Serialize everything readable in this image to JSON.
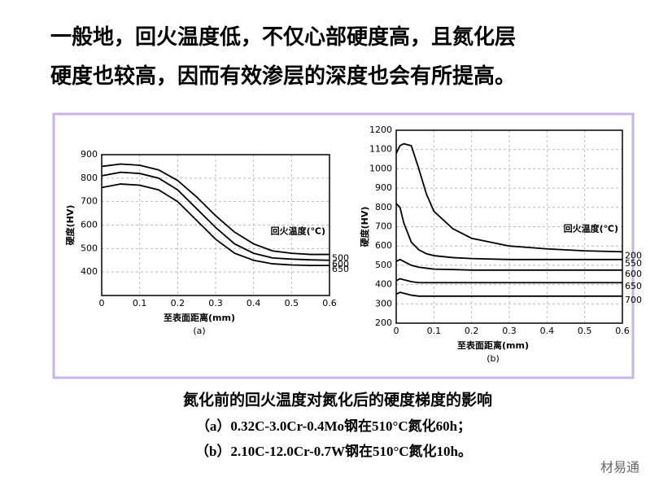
{
  "text": {
    "lines": [
      "一般地，回火温度低，不仅心部硬度高，且氮化层",
      "硬度也较高，因而有效渗层的深度也会有所提高。"
    ]
  },
  "chart_data": [
    {
      "type": "line",
      "label": "(a)",
      "xlabel": "至表面距离(mm)",
      "ylabel": "硬度(HV)",
      "legend_title": "回火温度(℃)",
      "grid": true,
      "x": [
        0,
        0.05,
        0.1,
        0.15,
        0.2,
        0.25,
        0.3,
        0.35,
        0.4,
        0.45,
        0.5,
        0.55,
        0.6
      ],
      "xlim": [
        0,
        0.6
      ],
      "xticks": [
        0,
        0.1,
        0.2,
        0.3,
        0.4,
        0.5,
        0.6
      ],
      "ylim": [
        300,
        900
      ],
      "yticks": [
        400,
        500,
        600,
        700,
        800,
        900
      ],
      "series": [
        {
          "name": "500",
          "color": "#000000",
          "values": [
            850,
            860,
            855,
            835,
            790,
            720,
            640,
            570,
            520,
            490,
            480,
            475,
            475
          ]
        },
        {
          "name": "600",
          "color": "#000000",
          "values": [
            810,
            825,
            820,
            800,
            750,
            670,
            590,
            520,
            480,
            460,
            455,
            452,
            450
          ]
        },
        {
          "name": "650",
          "color": "#000000",
          "values": [
            760,
            775,
            770,
            750,
            700,
            620,
            540,
            480,
            450,
            435,
            430,
            428,
            428
          ]
        }
      ]
    },
    {
      "type": "line",
      "label": "(b)",
      "xlabel": "至表面距离(mm)",
      "ylabel": "硬度(HV)",
      "legend_title": "回火温度(℃)",
      "grid": true,
      "x": [
        0,
        0.01,
        0.02,
        0.04,
        0.06,
        0.08,
        0.1,
        0.15,
        0.2,
        0.3,
        0.4,
        0.5,
        0.6
      ],
      "xlim": [
        0,
        0.6
      ],
      "xticks": [
        0,
        0.1,
        0.2,
        0.3,
        0.4,
        0.5,
        0.6
      ],
      "ylim": [
        200,
        1200
      ],
      "yticks": [
        200,
        300,
        400,
        500,
        600,
        700,
        800,
        900,
        1000,
        1100,
        1200
      ],
      "series": [
        {
          "name": "200",
          "color": "#000000",
          "values": [
            1080,
            1120,
            1130,
            1120,
            1000,
            870,
            780,
            690,
            640,
            600,
            585,
            575,
            570
          ]
        },
        {
          "name": "550",
          "color": "#000000",
          "values": [
            820,
            800,
            720,
            620,
            580,
            560,
            550,
            540,
            535,
            530,
            530,
            530,
            530
          ]
        },
        {
          "name": "600",
          "color": "#000000",
          "values": [
            520,
            530,
            520,
            500,
            490,
            485,
            480,
            478,
            475,
            475,
            475,
            475,
            475
          ]
        },
        {
          "name": "650",
          "color": "#000000",
          "values": [
            420,
            430,
            425,
            415,
            410,
            410,
            410,
            410,
            410,
            410,
            410,
            410,
            410
          ]
        },
        {
          "name": "700",
          "color": "#000000",
          "values": [
            350,
            360,
            355,
            345,
            340,
            340,
            340,
            340,
            340,
            340,
            340,
            340,
            340
          ]
        }
      ]
    }
  ],
  "caption": {
    "title": "氮化前的回火温度对氮化后的硬度梯度的影响",
    "lines": [
      "（a）0.32C-3.0Cr-0.4Mo钢在510°C氮化60h；",
      "（b）2.10C-12.0Cr-0.7W钢在510°C氮化10h。"
    ]
  },
  "watermark": "材易通"
}
